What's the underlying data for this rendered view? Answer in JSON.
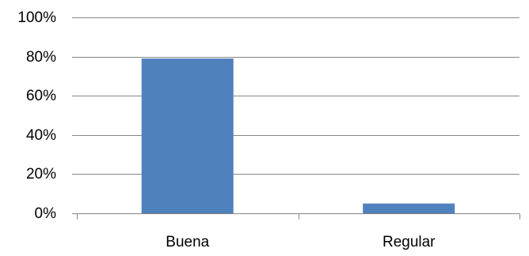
{
  "chart_data": {
    "type": "bar",
    "title": "",
    "xlabel": "",
    "ylabel": "",
    "categories": [
      "Buena",
      "Regular"
    ],
    "values": [
      0.79,
      0.05
    ],
    "ylim": [
      0,
      1
    ],
    "yticks": [
      0,
      0.2,
      0.4,
      0.6,
      0.8,
      1.0
    ],
    "ytick_labels": [
      "0%",
      "20%",
      "40%",
      "60%",
      "80%",
      "100%"
    ],
    "grid": true,
    "legend": "none",
    "colors": {
      "bar": "#4F81BD",
      "grid": "#868686",
      "text": "#000000"
    }
  }
}
